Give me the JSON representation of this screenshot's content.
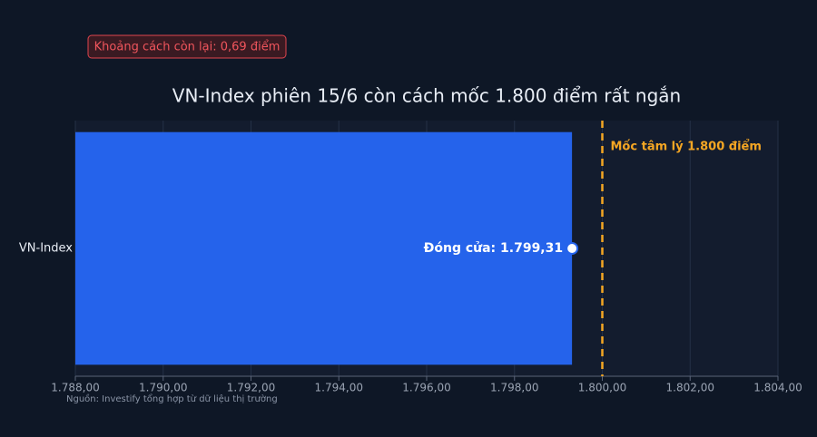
{
  "chart_data": {
    "type": "bar",
    "orientation": "horizontal",
    "title": "VN-Index phiên 15/6 còn cách mốc 1.800 điểm rất ngắn",
    "badge": "Khoảng cách còn lại: 0,69 điểm",
    "source": "Nguồn: Investify tổng hợp từ dữ liệu thị trường",
    "categories": [
      "VN-Index"
    ],
    "values": [
      1799.31
    ],
    "value_labels": [
      "Đóng cửa: 1.799,31"
    ],
    "color": "#2563eb",
    "xlim": [
      1788,
      1804
    ],
    "xticks": [
      {
        "value": 1788,
        "label": "1.788,00"
      },
      {
        "value": 1790,
        "label": "1.790,00"
      },
      {
        "value": 1792,
        "label": "1.792,00"
      },
      {
        "value": 1794,
        "label": "1.794,00"
      },
      {
        "value": 1796,
        "label": "1.796,00"
      },
      {
        "value": 1798,
        "label": "1.798,00"
      },
      {
        "value": 1800,
        "label": "1.800,00"
      },
      {
        "value": 1802,
        "label": "1.802,00"
      },
      {
        "value": 1804,
        "label": "1.804,00"
      }
    ],
    "reference_line": {
      "value": 1800,
      "label": "Mốc tâm lý 1.800 điểm",
      "color": "#f5a623"
    },
    "grid": true
  }
}
